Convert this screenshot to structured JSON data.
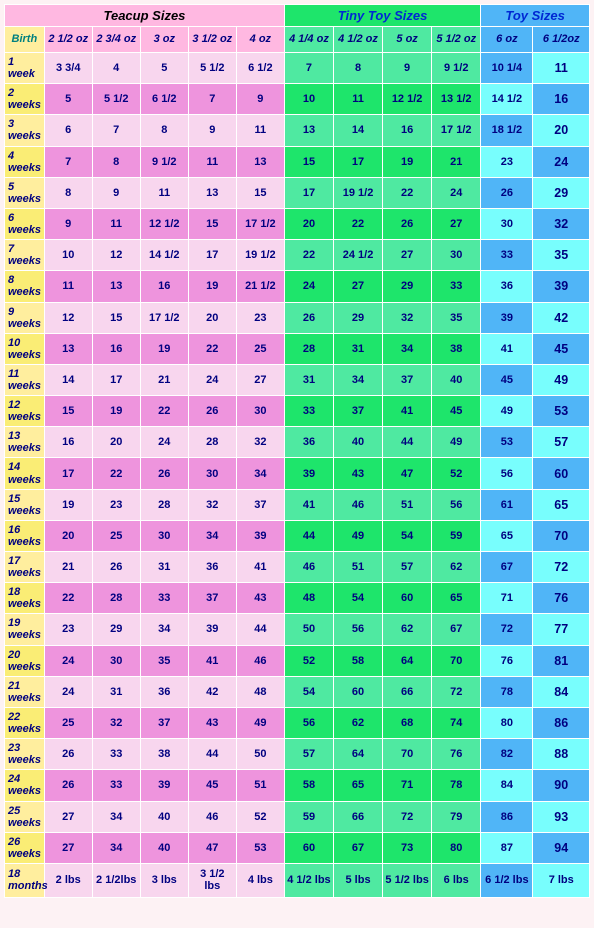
{
  "colors": {
    "page_bg": "#fdf2f4",
    "border": "#ffffff",
    "teacup_group_bg": "#ffb8e1",
    "teacup_group_text": "#000000",
    "tiny_group_bg": "#1ee56b",
    "tiny_group_text": "#0028d3",
    "toy_group_bg": "#50b5f7",
    "toy_group_text": "#0028d3",
    "birth_bg": "#ffee9e",
    "birth_text": "#008080",
    "teacup_header_bg": "#ffb8e1",
    "tiny_header_bg": "#4fe9a1",
    "toy_header_bg": "#50b5f7",
    "header_text": "#000080",
    "label_odd_bg": "#ffee9e",
    "label_even_bg": "#faed75",
    "label_text": "#000080",
    "teacup_odd_bg": "#f8d6ee",
    "teacup_even_bg": "#ee94dd",
    "tiny_odd_bg": "#4fe9a1",
    "tiny_even_bg": "#1ee56b",
    "toy_odd_bg": "#50b5f7",
    "toy_even_bg": "#78fefd",
    "cell_text": "#000080"
  },
  "typography": {
    "font_family": "Arial, sans-serif",
    "group_header_size": 13,
    "col_header_size": 11,
    "cell_size": 11,
    "last_col_size": 12.5
  },
  "groups": [
    {
      "label": "Teacup Sizes",
      "span": 6
    },
    {
      "label": "Tiny Toy Sizes",
      "span": 4
    },
    {
      "label": "Toy Sizes",
      "span": 2
    }
  ],
  "headers": {
    "row_label": "Birth",
    "cols": [
      "2 1/2 oz",
      "2 3/4 oz",
      "3 oz",
      "3 1/2 oz",
      "4 oz",
      "4 1/4 oz",
      "4 1/2 oz",
      "5 oz",
      "5 1/2 oz",
      "6 oz",
      "6 1/2oz"
    ]
  },
  "rows": [
    {
      "label": "1 week",
      "cells": [
        "3 3/4",
        "4",
        "5",
        "5 1/2",
        "6 1/2",
        "7",
        "8",
        "9",
        "9 1/2",
        "10 1/4",
        "11"
      ]
    },
    {
      "label": "2 weeks",
      "cells": [
        "5",
        "5 1/2",
        "6 1/2",
        "7",
        "9",
        "10",
        "11",
        "12 1/2",
        "13 1/2",
        "14 1/2",
        "16"
      ]
    },
    {
      "label": "3 weeks",
      "cells": [
        "6",
        "7",
        "8",
        "9",
        "11",
        "13",
        "14",
        "16",
        "17 1/2",
        "18 1/2",
        "20"
      ]
    },
    {
      "label": "4 weeks",
      "cells": [
        "7",
        "8",
        "9 1/2",
        "11",
        "13",
        "15",
        "17",
        "19",
        "21",
        "23",
        "24"
      ]
    },
    {
      "label": "5 weeks",
      "cells": [
        "8",
        "9",
        "11",
        "13",
        "15",
        "17",
        "19 1/2",
        "22",
        "24",
        "26",
        "29"
      ]
    },
    {
      "label": "6 weeks",
      "cells": [
        "9",
        "11",
        "12 1/2",
        "15",
        "17 1/2",
        "20",
        "22",
        "26",
        "27",
        "30",
        "32"
      ]
    },
    {
      "label": "7 weeks",
      "cells": [
        "10",
        "12",
        "14 1/2",
        "17",
        "19 1/2",
        "22",
        "24 1/2",
        "27",
        "30",
        "33",
        "35"
      ]
    },
    {
      "label": "8 weeks",
      "cells": [
        "11",
        "13",
        "16",
        "19",
        "21 1/2",
        "24",
        "27",
        "29",
        "33",
        "36",
        "39"
      ]
    },
    {
      "label": "9 weeks",
      "cells": [
        "12",
        "15",
        "17 1/2",
        "20",
        "23",
        "26",
        "29",
        "32",
        "35",
        "39",
        "42"
      ]
    },
    {
      "label": "10 weeks",
      "cells": [
        "13",
        "16",
        "19",
        "22",
        "25",
        "28",
        "31",
        "34",
        "38",
        "41",
        "45"
      ]
    },
    {
      "label": "11 weeks",
      "cells": [
        "14",
        "17",
        "21",
        "24",
        "27",
        "31",
        "34",
        "37",
        "40",
        "45",
        "49"
      ]
    },
    {
      "label": "12 weeks",
      "cells": [
        "15",
        "19",
        "22",
        "26",
        "30",
        "33",
        "37",
        "41",
        "45",
        "49",
        "53"
      ]
    },
    {
      "label": "13 weeks",
      "cells": [
        "16",
        "20",
        "24",
        "28",
        "32",
        "36",
        "40",
        "44",
        "49",
        "53",
        "57"
      ]
    },
    {
      "label": "14 weeks",
      "cells": [
        "17",
        "22",
        "26",
        "30",
        "34",
        "39",
        "43",
        "47",
        "52",
        "56",
        "60"
      ]
    },
    {
      "label": "15 weeks",
      "cells": [
        "19",
        "23",
        "28",
        "32",
        "37",
        "41",
        "46",
        "51",
        "56",
        "61",
        "65"
      ]
    },
    {
      "label": "16 weeks",
      "cells": [
        "20",
        "25",
        "30",
        "34",
        "39",
        "44",
        "49",
        "54",
        "59",
        "65",
        "70"
      ]
    },
    {
      "label": "17 weeks",
      "cells": [
        "21",
        "26",
        "31",
        "36",
        "41",
        "46",
        "51",
        "57",
        "62",
        "67",
        "72"
      ]
    },
    {
      "label": "18 weeks",
      "cells": [
        "22",
        "28",
        "33",
        "37",
        "43",
        "48",
        "54",
        "60",
        "65",
        "71",
        "76"
      ]
    },
    {
      "label": "19 weeks",
      "cells": [
        "23",
        "29",
        "34",
        "39",
        "44",
        "50",
        "56",
        "62",
        "67",
        "72",
        "77"
      ]
    },
    {
      "label": "20 weeks",
      "cells": [
        "24",
        "30",
        "35",
        "41",
        "46",
        "52",
        "58",
        "64",
        "70",
        "76",
        "81"
      ]
    },
    {
      "label": "21 weeks",
      "cells": [
        "24",
        "31",
        "36",
        "42",
        "48",
        "54",
        "60",
        "66",
        "72",
        "78",
        "84"
      ]
    },
    {
      "label": "22 weeks",
      "cells": [
        "25",
        "32",
        "37",
        "43",
        "49",
        "56",
        "62",
        "68",
        "74",
        "80",
        "86"
      ]
    },
    {
      "label": "23 weeks",
      "cells": [
        "26",
        "33",
        "38",
        "44",
        "50",
        "57",
        "64",
        "70",
        "76",
        "82",
        "88"
      ]
    },
    {
      "label": "24 weeks",
      "cells": [
        "26",
        "33",
        "39",
        "45",
        "51",
        "58",
        "65",
        "71",
        "78",
        "84",
        "90"
      ]
    },
    {
      "label": "25 weeks",
      "cells": [
        "27",
        "34",
        "40",
        "46",
        "52",
        "59",
        "66",
        "72",
        "79",
        "86",
        "93"
      ]
    },
    {
      "label": "26 weeks",
      "cells": [
        "27",
        "34",
        "40",
        "47",
        "53",
        "60",
        "67",
        "73",
        "80",
        "87",
        "94"
      ]
    },
    {
      "label": "18 months",
      "cells": [
        "2 lbs",
        "2 1/2lbs",
        "3 lbs",
        "3 1/2 lbs",
        "4 lbs",
        "4 1/2 lbs",
        "5 lbs",
        "5 1/2 lbs",
        "6 lbs",
        "6 1/2 lbs",
        "7 lbs"
      ]
    }
  ]
}
